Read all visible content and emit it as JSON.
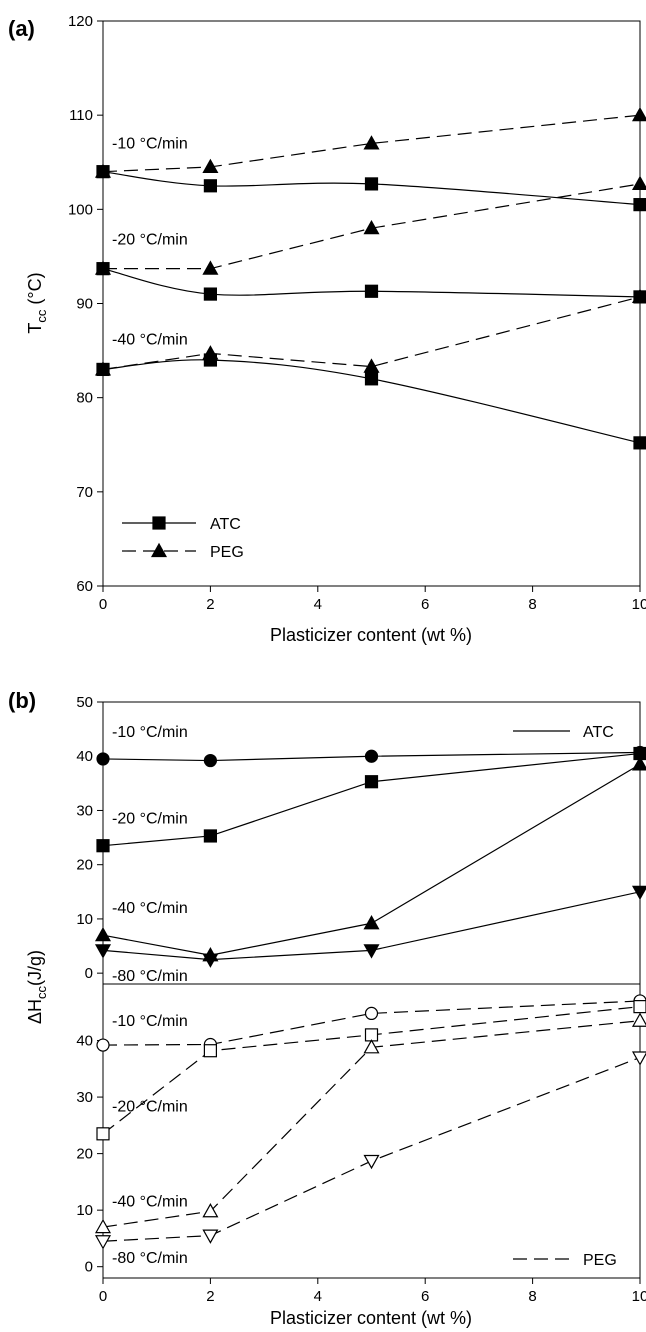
{
  "chart_data": [
    {
      "panel": "(a)",
      "type": "line",
      "xlabel": "Plasticizer content (wt %)",
      "ylabel_main": "T",
      "ylabel_sub": "cc",
      "ylabel_tail": " (°C)",
      "xlim": [
        0,
        10
      ],
      "ylim": [
        60,
        120
      ],
      "xticks": [
        0,
        2,
        4,
        6,
        8,
        10
      ],
      "yticks": [
        60,
        70,
        80,
        90,
        100,
        110,
        120
      ],
      "x": [
        0,
        2,
        5,
        10
      ],
      "legend_placement": "bottom-left",
      "legend": [
        {
          "name": "ATC",
          "style": "solid",
          "marker": "square"
        },
        {
          "name": "PEG",
          "style": "dashed",
          "marker": "triangle-up"
        }
      ],
      "series": [
        {
          "plasticizer": "ATC",
          "rate": "-10 °C/min",
          "style": "solid",
          "marker": "square",
          "values": [
            104.0,
            102.5,
            102.7,
            100.5
          ]
        },
        {
          "plasticizer": "PEG",
          "rate": "-10 °C/min",
          "style": "dashed",
          "marker": "triangle-up",
          "values": [
            104.0,
            104.5,
            107.0,
            110.0
          ]
        },
        {
          "plasticizer": "ATC",
          "rate": "-20 °C/min",
          "style": "solid",
          "marker": "square",
          "values": [
            93.7,
            91.0,
            91.3,
            90.7
          ]
        },
        {
          "plasticizer": "PEG",
          "rate": "-20 °C/min",
          "style": "dashed",
          "marker": "triangle-up",
          "values": [
            93.7,
            93.7,
            98.0,
            102.7
          ]
        },
        {
          "plasticizer": "ATC",
          "rate": "-40 °C/min",
          "style": "solid",
          "marker": "square",
          "values": [
            83.0,
            84.0,
            82.0,
            75.2
          ]
        },
        {
          "plasticizer": "PEG",
          "rate": "-40 °C/min",
          "style": "dashed",
          "marker": "triangle-up",
          "values": [
            83.0,
            84.7,
            83.3,
            90.7
          ]
        }
      ],
      "annotations": [
        {
          "text": "-10 °C/min",
          "at": [
            0,
            107
          ]
        },
        {
          "text": "-20 °C/min",
          "at": [
            0,
            96.8
          ]
        },
        {
          "text": "-40 °C/min",
          "at": [
            0,
            86.2
          ]
        }
      ]
    },
    {
      "panel": "(b)",
      "type": "line",
      "xlabel": "Plasticizer content (wt %)",
      "ylabel_main": "ΔH",
      "ylabel_sub": "cc",
      "ylabel_tail": "(J/g)",
      "xlim": [
        0,
        10
      ],
      "xticks": [
        0,
        2,
        4,
        6,
        8,
        10
      ],
      "x": [
        0,
        2,
        5,
        10
      ],
      "subpanels": [
        {
          "name": "ATC",
          "legend": {
            "name": "ATC",
            "style": "solid",
            "placement": "top-right"
          },
          "ylim": [
            -2,
            50
          ],
          "yticks": [
            0,
            10,
            20,
            30,
            40,
            50
          ],
          "series": [
            {
              "rate": "-10 °C/min",
              "marker": "circle",
              "filled": true,
              "values": [
                39.5,
                39.2,
                40.0,
                40.7
              ]
            },
            {
              "rate": "-20 °C/min",
              "marker": "square",
              "filled": true,
              "values": [
                23.5,
                25.3,
                35.3,
                40.5
              ]
            },
            {
              "rate": "-40 °C/min",
              "marker": "triangle-up",
              "filled": true,
              "values": [
                7.0,
                3.3,
                9.2,
                38.5
              ]
            },
            {
              "rate": "-80 °C/min",
              "marker": "triangle-down",
              "filled": true,
              "values": [
                4.2,
                2.5,
                4.2,
                15.0
              ]
            }
          ],
          "annotations": [
            {
              "text": "-10 °C/min",
              "at": [
                0,
                44.5
              ]
            },
            {
              "text": "-20 °C/min",
              "at": [
                0,
                28.5
              ]
            },
            {
              "text": "-40 °C/min",
              "at": [
                0,
                12.0
              ]
            },
            {
              "text": "-80 °C/min",
              "at": [
                0,
                -0.5
              ]
            }
          ]
        },
        {
          "name": "PEG",
          "legend": {
            "name": "PEG",
            "style": "dashed",
            "placement": "bottom-right"
          },
          "ylim": [
            -2,
            50
          ],
          "yticks": [
            0,
            10,
            20,
            30,
            40
          ],
          "series": [
            {
              "rate": "-10 °C/min",
              "marker": "circle",
              "filled": false,
              "values": [
                39.2,
                39.3,
                44.8,
                47.0
              ]
            },
            {
              "rate": "-20 °C/min",
              "marker": "square",
              "filled": false,
              "values": [
                23.5,
                38.2,
                41.0,
                46.0
              ]
            },
            {
              "rate": "-40 °C/min",
              "marker": "triangle-up",
              "filled": false,
              "values": [
                7.0,
                9.8,
                38.8,
                43.5
              ]
            },
            {
              "rate": "-80 °C/min",
              "marker": "triangle-down",
              "filled": false,
              "values": [
                4.5,
                5.5,
                18.7,
                37.0
              ]
            }
          ],
          "annotations": [
            {
              "text": "-10 °C/min",
              "at": [
                0,
                43.5
              ]
            },
            {
              "text": "-20 °C/min",
              "at": [
                0,
                28.3
              ]
            },
            {
              "text": "-40 °C/min",
              "at": [
                0,
                11.5
              ]
            },
            {
              "text": "-80 °C/min",
              "at": [
                0,
                1.5
              ]
            }
          ]
        }
      ]
    }
  ]
}
